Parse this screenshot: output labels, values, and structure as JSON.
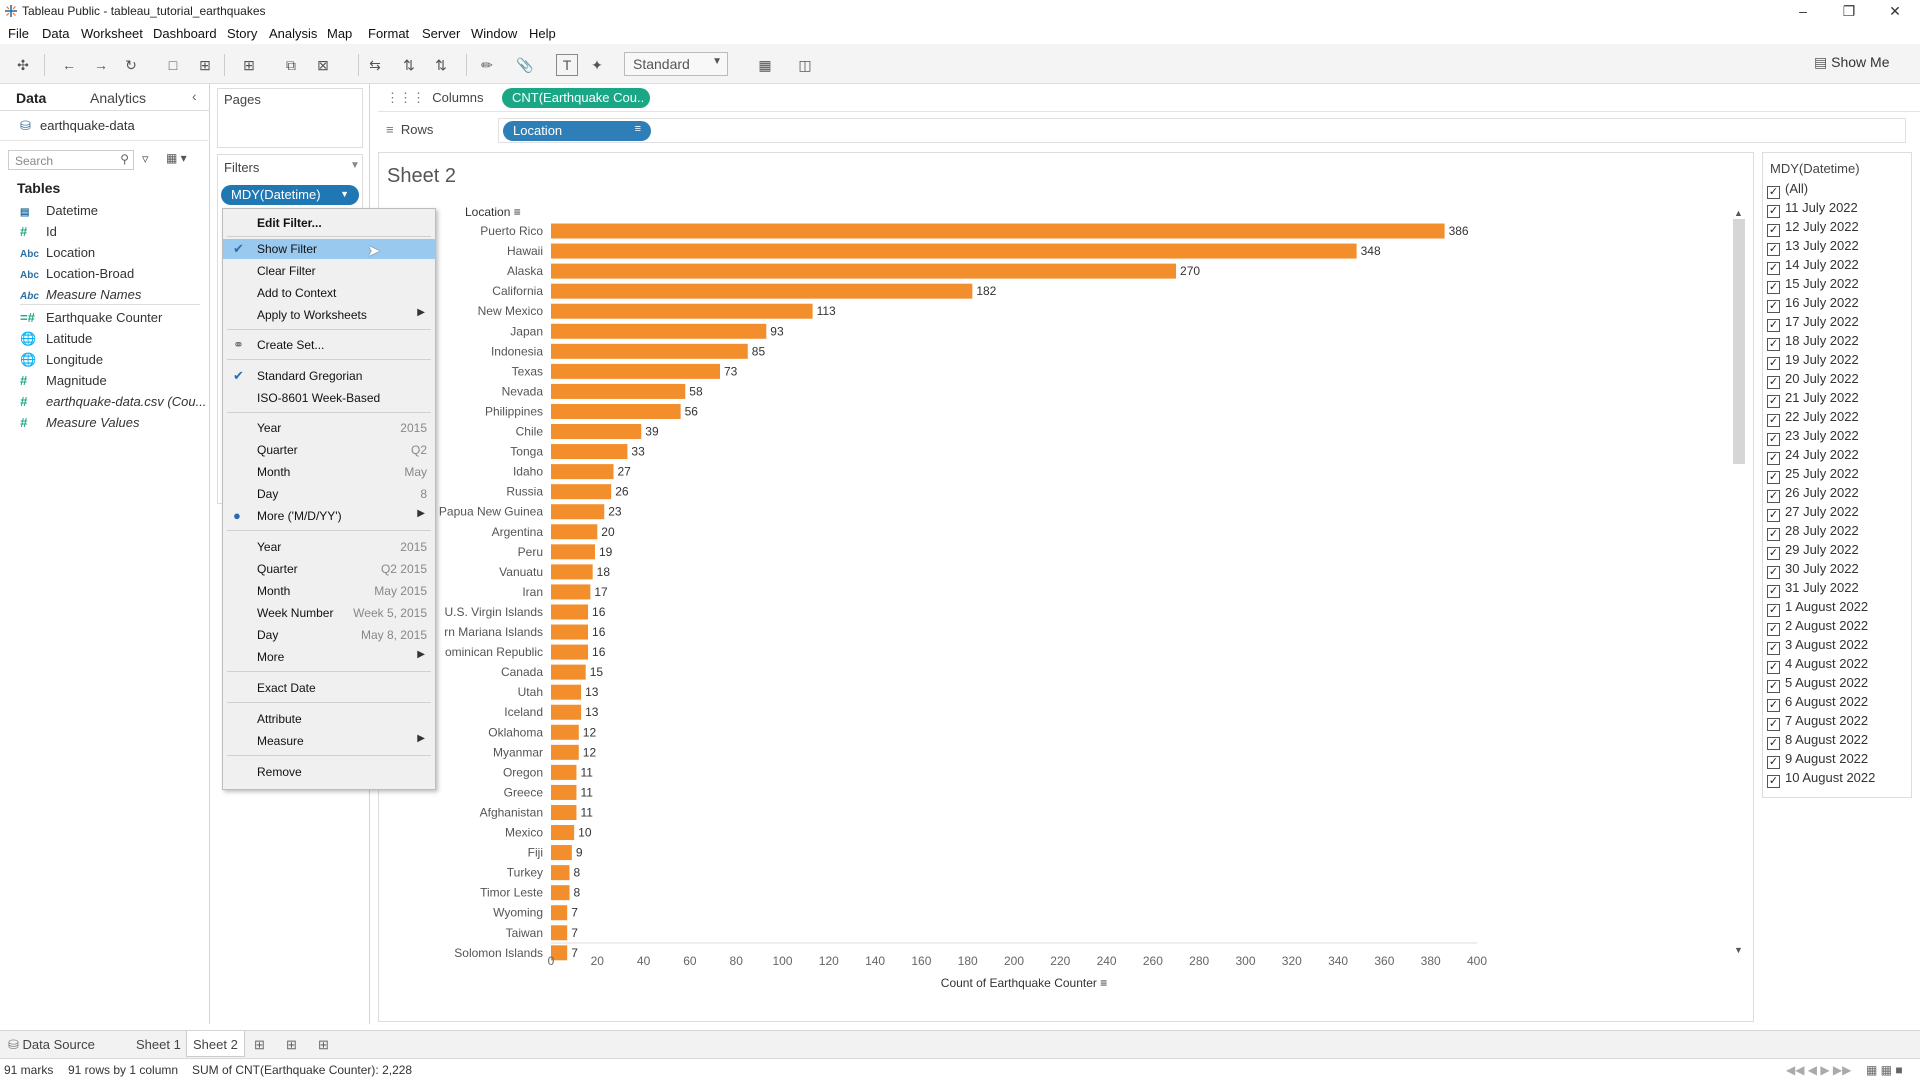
{
  "window": {
    "title": "Tableau Public - tableau_tutorial_earthquakes"
  },
  "menu": [
    "File",
    "Data",
    "Worksheet",
    "Dashboard",
    "Story",
    "Analysis",
    "Map",
    "Format",
    "Server",
    "Window",
    "Help"
  ],
  "toolbar": {
    "fit": "Standard",
    "show_me": "Show Me"
  },
  "data_pane": {
    "tab_data": "Data",
    "tab_analytics": "Analytics",
    "datasource": "earthquake-data",
    "search_placeholder": "Search",
    "tables_heading": "Tables",
    "fields": [
      {
        "icon": "date",
        "name": "Datetime"
      },
      {
        "icon": "#",
        "name": "Id"
      },
      {
        "icon": "Abc",
        "name": "Location"
      },
      {
        "icon": "Abc",
        "name": "Location-Broad"
      },
      {
        "icon": "Abc",
        "name": "Measure Names"
      },
      {
        "icon": "=#",
        "name": "Earthquake Counter"
      },
      {
        "icon": "globe",
        "name": "Latitude"
      },
      {
        "icon": "globe",
        "name": "Longitude"
      },
      {
        "icon": "#",
        "name": "Magnitude"
      },
      {
        "icon": "#",
        "name": "earthquake-data.csv (Cou..."
      },
      {
        "icon": "#",
        "name": "Measure Values"
      }
    ]
  },
  "shelves": {
    "pages": "Pages",
    "filters": "Filters",
    "filter_pill": "MDY(Datetime)",
    "columns_label": "Columns",
    "rows_label": "Rows",
    "columns_pill": "CNT(Earthquake Cou..",
    "rows_pill": "Location"
  },
  "sheet": {
    "title": "Sheet 2"
  },
  "chart_data": {
    "type": "bar",
    "orientation": "horizontal",
    "row_header": "Location",
    "xlabel": "Count of Earthquake Counter",
    "xlim": [
      0,
      400
    ],
    "xticks": [
      0,
      20,
      40,
      60,
      80,
      100,
      120,
      140,
      160,
      180,
      200,
      220,
      240,
      260,
      280,
      300,
      320,
      340,
      360,
      380,
      400
    ],
    "bar_color": "#f28e2b",
    "categories": [
      "Puerto Rico",
      "Hawaii",
      "Alaska",
      "California",
      "New Mexico",
      "Japan",
      "Indonesia",
      "Texas",
      "Nevada",
      "Philippines",
      "Chile",
      "Tonga",
      "Idaho",
      "Russia",
      "Papua New Guinea",
      "Argentina",
      "Peru",
      "Vanuatu",
      "Iran",
      "U.S. Virgin Islands",
      "rn Mariana Islands",
      "ominican Republic",
      "Canada",
      "Utah",
      "Iceland",
      "Oklahoma",
      "Myanmar",
      "Oregon",
      "Greece",
      "Afghanistan",
      "Mexico",
      "Fiji",
      "Turkey",
      "Timor Leste",
      "Wyoming",
      "Taiwan",
      "Solomon Islands"
    ],
    "values": [
      386,
      348,
      270,
      182,
      113,
      93,
      85,
      73,
      58,
      56,
      39,
      33,
      27,
      26,
      23,
      20,
      19,
      18,
      17,
      16,
      16,
      16,
      15,
      13,
      13,
      12,
      12,
      11,
      11,
      11,
      10,
      9,
      8,
      8,
      7,
      7,
      7
    ]
  },
  "quick_filter": {
    "title": "MDY(Datetime)",
    "items": [
      "(All)",
      "11 July 2022",
      "12 July 2022",
      "13 July 2022",
      "14 July 2022",
      "15 July 2022",
      "16 July 2022",
      "17 July 2022",
      "18 July 2022",
      "19 July 2022",
      "20 July 2022",
      "21 July 2022",
      "22 July 2022",
      "23 July 2022",
      "24 July 2022",
      "25 July 2022",
      "26 July 2022",
      "27 July 2022",
      "28 July 2022",
      "29 July 2022",
      "30 July 2022",
      "31 July 2022",
      "1 August 2022",
      "2 August 2022",
      "3 August 2022",
      "4 August 2022",
      "5 August 2022",
      "6 August 2022",
      "7 August 2022",
      "8 August 2022",
      "9 August 2022",
      "10 August 2022"
    ]
  },
  "context_menu": {
    "edit_filter": "Edit Filter...",
    "show_filter": "Show Filter",
    "clear_filter": "Clear Filter",
    "add_to_context": "Add to Context",
    "apply_to_worksheets": "Apply to Worksheets",
    "create_set": "Create Set...",
    "standard_gregorian": "Standard Gregorian",
    "iso_week": "ISO-8601 Week-Based",
    "part_year": "Year",
    "part_year_ex": "2015",
    "part_quarter": "Quarter",
    "part_quarter_ex": "Q2",
    "part_month": "Month",
    "part_month_ex": "May",
    "part_day": "Day",
    "part_day_ex": "8",
    "part_more": "More ('M/D/YY')",
    "val_year": "Year",
    "val_year_ex": "2015",
    "val_quarter": "Quarter",
    "val_quarter_ex": "Q2 2015",
    "val_month": "Month",
    "val_month_ex": "May 2015",
    "val_week": "Week Number",
    "val_week_ex": "Week 5, 2015",
    "val_day": "Day",
    "val_day_ex": "May 8, 2015",
    "val_more": "More",
    "exact_date": "Exact Date",
    "attribute": "Attribute",
    "measure": "Measure",
    "remove": "Remove"
  },
  "tabs": {
    "data_source": "Data Source",
    "sheet1": "Sheet 1",
    "sheet2": "Sheet 2"
  },
  "status": {
    "marks": "91 marks",
    "rows": "91 rows by 1 column",
    "sum": "SUM of CNT(Earthquake Counter): 2,228"
  }
}
